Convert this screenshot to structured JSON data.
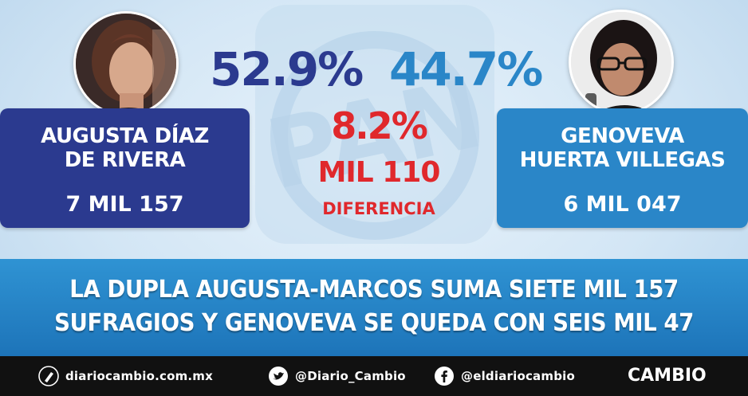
{
  "candidates": {
    "left": {
      "name_line1": "AUGUSTA DÍAZ",
      "name_line2": "DE RIVERA",
      "votes": "7 MIL 157",
      "percent": "52.9%"
    },
    "right": {
      "name_line1": "GENOVEVA",
      "name_line2": "HUERTA VILLEGAS",
      "votes": "6 MIL 047",
      "percent": "44.7%"
    }
  },
  "difference": {
    "percent": "8.2%",
    "votes": "MIL 110",
    "label": "DIFERENCIA"
  },
  "headline": {
    "line1": "LA DUPLA AUGUSTA-MARCOS SUMA SIETE MIL 157",
    "line2": "SUFRAGIOS Y GENOVEVA SE QUEDA CON SEIS MIL 47"
  },
  "footer": {
    "website": "diariocambio.com.mx",
    "twitter": "@Diario_Cambio",
    "facebook": "@eldiariocambio",
    "brand": "CAMBIO",
    "icons": [
      "pen-icon",
      "twitter-icon",
      "facebook-icon"
    ]
  },
  "colors": {
    "left_blue": "#2b3a8f",
    "right_blue": "#2a86c8",
    "difference_red": "#e0282c",
    "banner_blue": "#1d74b9",
    "footer_black": "#111111"
  }
}
